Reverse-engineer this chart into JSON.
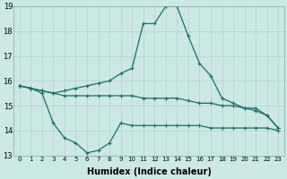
{
  "xlabel": "Humidex (Indice chaleur)",
  "x": [
    0,
    1,
    2,
    3,
    4,
    5,
    6,
    7,
    8,
    9,
    10,
    11,
    12,
    13,
    14,
    15,
    16,
    17,
    18,
    19,
    20,
    21,
    22,
    23
  ],
  "line_top": [
    15.8,
    15.7,
    15.6,
    15.5,
    15.6,
    15.7,
    15.8,
    15.9,
    16.0,
    16.3,
    16.5,
    18.3,
    18.3,
    19.0,
    19.0,
    17.8,
    16.7,
    16.2,
    15.3,
    15.1,
    14.9,
    14.8,
    14.6,
    14.1
  ],
  "line_mid": [
    15.8,
    15.7,
    15.6,
    15.5,
    15.4,
    15.4,
    15.4,
    15.4,
    15.4,
    15.4,
    15.4,
    15.3,
    15.3,
    15.3,
    15.3,
    15.2,
    15.1,
    15.1,
    15.0,
    15.0,
    14.9,
    14.9,
    14.6,
    14.1
  ],
  "line_bot": [
    15.8,
    15.7,
    15.5,
    14.3,
    13.7,
    13.5,
    13.1,
    13.2,
    13.5,
    14.3,
    14.2,
    14.2,
    14.2,
    14.2,
    14.2,
    14.2,
    14.2,
    14.1,
    14.1,
    14.1,
    14.1,
    14.1,
    14.1,
    14.0
  ],
  "line_color": "#1a6e64",
  "bg_color": "#cce8e4",
  "grid_color": "#afd4d0",
  "ylim": [
    13,
    19
  ],
  "yticks": [
    13,
    14,
    15,
    16,
    17,
    18,
    19
  ],
  "xticks": [
    0,
    1,
    2,
    3,
    4,
    5,
    6,
    7,
    8,
    9,
    10,
    11,
    12,
    13,
    14,
    15,
    16,
    17,
    18,
    19,
    20,
    21,
    22,
    23
  ]
}
